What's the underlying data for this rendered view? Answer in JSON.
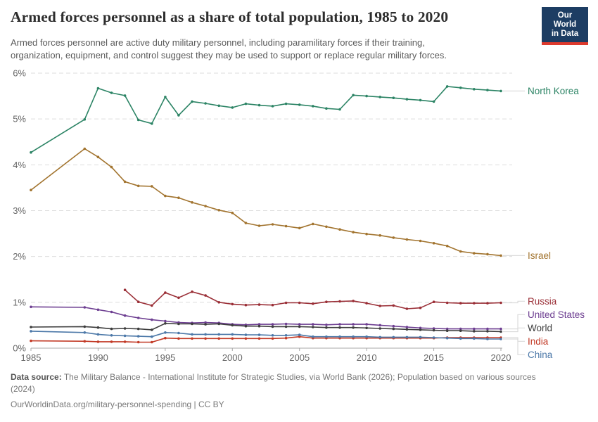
{
  "header": {
    "title": "Armed forces personnel as a share of total population, 1985 to 2020",
    "subtitle_line1": "Armed forces personnel are active duty military personnel, including paramilitary forces if their training,",
    "subtitle_line2": "organization, equipment, and control suggest they may be used to support or replace regular military forces.",
    "logo_line1": "Our World",
    "logo_line2": "in Data",
    "logo_bg": "#1D3D63",
    "logo_accent": "#DE3A2D"
  },
  "chart_data": {
    "type": "line",
    "title": "Armed forces personnel as a share of total population, 1985 to 2020",
    "unit": "%",
    "ylim": [
      0,
      6
    ],
    "yticks": [
      {
        "v": 0,
        "label": "0%"
      },
      {
        "v": 1,
        "label": "1%"
      },
      {
        "v": 2,
        "label": "2%"
      },
      {
        "v": 3,
        "label": "3%"
      },
      {
        "v": 4,
        "label": "4%"
      },
      {
        "v": 5,
        "label": "5%"
      },
      {
        "v": 6,
        "label": "6%"
      }
    ],
    "xticks": [
      1985,
      1990,
      1995,
      2000,
      2005,
      2010,
      2015,
      2020
    ],
    "xlim": [
      1985,
      2020
    ],
    "grid": "horizontal-dashed",
    "legend_position": "right-edge-labels",
    "series": [
      {
        "name": "North Korea",
        "color": "#2C8465",
        "points": [
          [
            1985,
            4.27
          ],
          [
            1989,
            4.99
          ],
          [
            1990,
            5.67
          ],
          [
            1991,
            5.57
          ],
          [
            1992,
            5.51
          ],
          [
            1993,
            4.98
          ],
          [
            1994,
            4.9
          ],
          [
            1995,
            5.48
          ],
          [
            1996,
            5.08
          ],
          [
            1997,
            5.38
          ],
          [
            1998,
            5.34
          ],
          [
            1999,
            5.29
          ],
          [
            2000,
            5.25
          ],
          [
            2001,
            5.33
          ],
          [
            2002,
            5.3
          ],
          [
            2003,
            5.28
          ],
          [
            2004,
            5.33
          ],
          [
            2005,
            5.31
          ],
          [
            2006,
            5.28
          ],
          [
            2007,
            5.23
          ],
          [
            2008,
            5.21
          ],
          [
            2009,
            5.52
          ],
          [
            2010,
            5.5
          ],
          [
            2011,
            5.48
          ],
          [
            2012,
            5.46
          ],
          [
            2013,
            5.43
          ],
          [
            2014,
            5.41
          ],
          [
            2015,
            5.38
          ],
          [
            2016,
            5.71
          ],
          [
            2017,
            5.68
          ],
          [
            2018,
            5.65
          ],
          [
            2019,
            5.63
          ],
          [
            2020,
            5.61
          ]
        ]
      },
      {
        "name": "Israel",
        "color": "#A2742F",
        "points": [
          [
            1985,
            3.45
          ],
          [
            1989,
            4.35
          ],
          [
            1990,
            4.17
          ],
          [
            1991,
            3.95
          ],
          [
            1992,
            3.63
          ],
          [
            1993,
            3.54
          ],
          [
            1994,
            3.53
          ],
          [
            1995,
            3.32
          ],
          [
            1996,
            3.28
          ],
          [
            1997,
            3.18
          ],
          [
            1998,
            3.1
          ],
          [
            1999,
            3.01
          ],
          [
            2000,
            2.95
          ],
          [
            2001,
            2.73
          ],
          [
            2002,
            2.67
          ],
          [
            2003,
            2.7
          ],
          [
            2004,
            2.66
          ],
          [
            2005,
            2.62
          ],
          [
            2006,
            2.71
          ],
          [
            2007,
            2.65
          ],
          [
            2008,
            2.59
          ],
          [
            2009,
            2.53
          ],
          [
            2010,
            2.49
          ],
          [
            2011,
            2.46
          ],
          [
            2012,
            2.41
          ],
          [
            2013,
            2.37
          ],
          [
            2014,
            2.34
          ],
          [
            2015,
            2.29
          ],
          [
            2016,
            2.23
          ],
          [
            2017,
            2.11
          ],
          [
            2018,
            2.07
          ],
          [
            2019,
            2.05
          ],
          [
            2020,
            2.02
          ]
        ]
      },
      {
        "name": "Russia",
        "color": "#9A2E36",
        "points": [
          [
            1992,
            1.27
          ],
          [
            1993,
            1.01
          ],
          [
            1994,
            0.93
          ],
          [
            1995,
            1.21
          ],
          [
            1996,
            1.1
          ],
          [
            1997,
            1.23
          ],
          [
            1998,
            1.15
          ],
          [
            1999,
            1.0
          ],
          [
            2000,
            0.96
          ],
          [
            2001,
            0.94
          ],
          [
            2002,
            0.95
          ],
          [
            2003,
            0.94
          ],
          [
            2004,
            0.99
          ],
          [
            2005,
            0.99
          ],
          [
            2006,
            0.97
          ],
          [
            2007,
            1.01
          ],
          [
            2008,
            1.02
          ],
          [
            2009,
            1.03
          ],
          [
            2010,
            0.98
          ],
          [
            2011,
            0.92
          ],
          [
            2012,
            0.93
          ],
          [
            2013,
            0.86
          ],
          [
            2014,
            0.88
          ],
          [
            2015,
            1.01
          ],
          [
            2016,
            0.99
          ],
          [
            2017,
            0.98
          ],
          [
            2018,
            0.98
          ],
          [
            2019,
            0.98
          ],
          [
            2020,
            0.99
          ]
        ]
      },
      {
        "name": "United States",
        "color": "#6D3E91",
        "points": [
          [
            1985,
            0.9
          ],
          [
            1989,
            0.89
          ],
          [
            1990,
            0.84
          ],
          [
            1991,
            0.79
          ],
          [
            1992,
            0.71
          ],
          [
            1993,
            0.66
          ],
          [
            1994,
            0.62
          ],
          [
            1995,
            0.59
          ],
          [
            1996,
            0.56
          ],
          [
            1997,
            0.55
          ],
          [
            1998,
            0.56
          ],
          [
            1999,
            0.55
          ],
          [
            2000,
            0.52
          ],
          [
            2001,
            0.51
          ],
          [
            2002,
            0.52
          ],
          [
            2003,
            0.52
          ],
          [
            2004,
            0.53
          ],
          [
            2005,
            0.52
          ],
          [
            2006,
            0.52
          ],
          [
            2007,
            0.51
          ],
          [
            2008,
            0.52
          ],
          [
            2009,
            0.52
          ],
          [
            2010,
            0.52
          ],
          [
            2011,
            0.5
          ],
          [
            2012,
            0.48
          ],
          [
            2013,
            0.46
          ],
          [
            2014,
            0.44
          ],
          [
            2015,
            0.43
          ],
          [
            2016,
            0.42
          ],
          [
            2017,
            0.42
          ],
          [
            2018,
            0.42
          ],
          [
            2019,
            0.42
          ],
          [
            2020,
            0.42
          ]
        ]
      },
      {
        "name": "World",
        "color": "#3D3D3D",
        "points": [
          [
            1985,
            0.46
          ],
          [
            1989,
            0.47
          ],
          [
            1990,
            0.45
          ],
          [
            1991,
            0.42
          ],
          [
            1992,
            0.43
          ],
          [
            1993,
            0.42
          ],
          [
            1994,
            0.4
          ],
          [
            1995,
            0.54
          ],
          [
            1996,
            0.53
          ],
          [
            1997,
            0.53
          ],
          [
            1998,
            0.52
          ],
          [
            1999,
            0.53
          ],
          [
            2000,
            0.5
          ],
          [
            2001,
            0.48
          ],
          [
            2002,
            0.48
          ],
          [
            2003,
            0.47
          ],
          [
            2004,
            0.47
          ],
          [
            2005,
            0.47
          ],
          [
            2006,
            0.46
          ],
          [
            2007,
            0.45
          ],
          [
            2008,
            0.45
          ],
          [
            2009,
            0.45
          ],
          [
            2010,
            0.44
          ],
          [
            2011,
            0.43
          ],
          [
            2012,
            0.42
          ],
          [
            2013,
            0.41
          ],
          [
            2014,
            0.4
          ],
          [
            2015,
            0.39
          ],
          [
            2016,
            0.38
          ],
          [
            2017,
            0.38
          ],
          [
            2018,
            0.37
          ],
          [
            2019,
            0.37
          ],
          [
            2020,
            0.36
          ]
        ]
      },
      {
        "name": "India",
        "color": "#C23A26",
        "points": [
          [
            1985,
            0.16
          ],
          [
            1989,
            0.15
          ],
          [
            1990,
            0.14
          ],
          [
            1991,
            0.14
          ],
          [
            1992,
            0.14
          ],
          [
            1993,
            0.13
          ],
          [
            1994,
            0.13
          ],
          [
            1995,
            0.22
          ],
          [
            1996,
            0.21
          ],
          [
            1997,
            0.21
          ],
          [
            1998,
            0.21
          ],
          [
            1999,
            0.21
          ],
          [
            2000,
            0.21
          ],
          [
            2001,
            0.21
          ],
          [
            2002,
            0.21
          ],
          [
            2003,
            0.21
          ],
          [
            2004,
            0.22
          ],
          [
            2005,
            0.25
          ],
          [
            2006,
            0.22
          ],
          [
            2007,
            0.22
          ],
          [
            2008,
            0.22
          ],
          [
            2009,
            0.22
          ],
          [
            2010,
            0.22
          ],
          [
            2011,
            0.22
          ],
          [
            2012,
            0.22
          ],
          [
            2013,
            0.22
          ],
          [
            2014,
            0.22
          ],
          [
            2015,
            0.22
          ],
          [
            2016,
            0.23
          ],
          [
            2017,
            0.23
          ],
          [
            2018,
            0.23
          ],
          [
            2019,
            0.23
          ],
          [
            2020,
            0.23
          ]
        ]
      },
      {
        "name": "China",
        "color": "#4C78A8",
        "points": [
          [
            1985,
            0.37
          ],
          [
            1989,
            0.34
          ],
          [
            1990,
            0.3
          ],
          [
            1991,
            0.28
          ],
          [
            1992,
            0.27
          ],
          [
            1993,
            0.26
          ],
          [
            1994,
            0.25
          ],
          [
            1995,
            0.34
          ],
          [
            1996,
            0.33
          ],
          [
            1997,
            0.3
          ],
          [
            1998,
            0.3
          ],
          [
            1999,
            0.3
          ],
          [
            2000,
            0.3
          ],
          [
            2001,
            0.29
          ],
          [
            2002,
            0.29
          ],
          [
            2003,
            0.28
          ],
          [
            2004,
            0.28
          ],
          [
            2005,
            0.29
          ],
          [
            2006,
            0.25
          ],
          [
            2007,
            0.25
          ],
          [
            2008,
            0.25
          ],
          [
            2009,
            0.25
          ],
          [
            2010,
            0.25
          ],
          [
            2011,
            0.24
          ],
          [
            2012,
            0.24
          ],
          [
            2013,
            0.24
          ],
          [
            2014,
            0.24
          ],
          [
            2015,
            0.23
          ],
          [
            2016,
            0.22
          ],
          [
            2017,
            0.21
          ],
          [
            2018,
            0.21
          ],
          [
            2019,
            0.2
          ],
          [
            2020,
            0.2
          ]
        ]
      }
    ]
  },
  "footer": {
    "source_label": "Data source:",
    "source_line1": " The Military Balance - International Institute for Strategic Studies, via World Bank (2026); Population based on various sources",
    "source_line2": "(2024)",
    "link_line": "OurWorldinData.org/military-personnel-spending | CC BY"
  }
}
